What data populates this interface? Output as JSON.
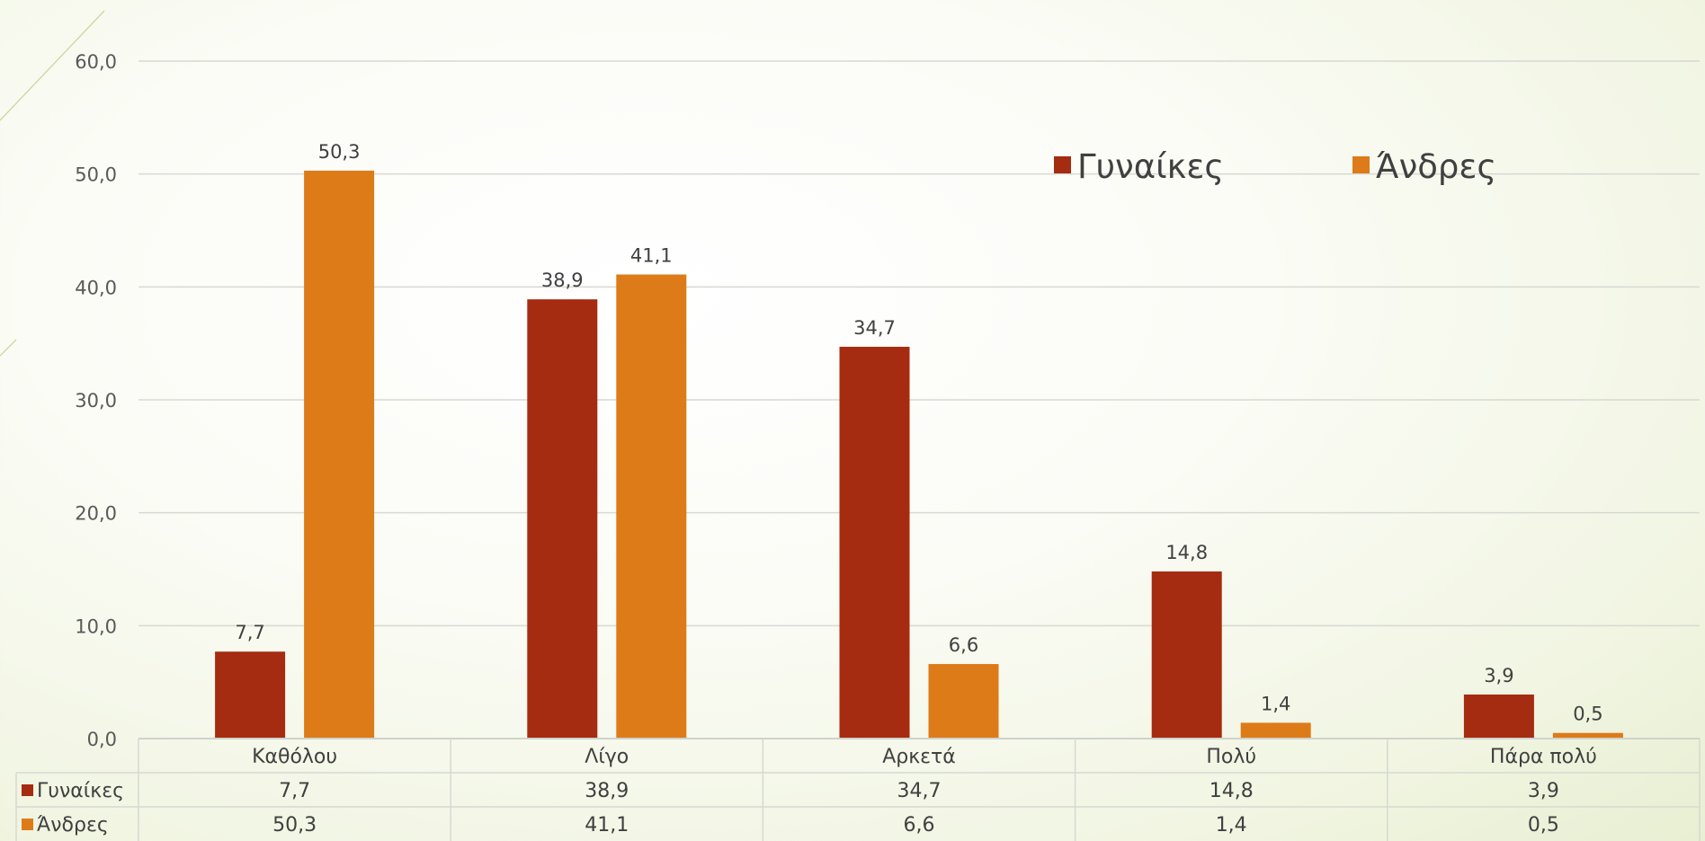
{
  "chart_data": {
    "type": "bar",
    "categories": [
      "Καθόλου",
      "Λίγο",
      "Αρκετά",
      "Πολύ",
      "Πάρα πολύ"
    ],
    "series": [
      {
        "name": "Γυναίκες",
        "values": [
          7.7,
          38.9,
          34.7,
          14.8,
          3.9
        ],
        "labels": [
          "7,7",
          "38,9",
          "34,7",
          "14,8",
          "3,9"
        ],
        "color": "#a52c10"
      },
      {
        "name": "Άνδρες",
        "values": [
          50.3,
          41.1,
          6.6,
          1.4,
          0.5
        ],
        "labels": [
          "50,3",
          "41,1",
          "6,6",
          "1,4",
          "0,5"
        ],
        "color": "#dd7b19"
      }
    ],
    "ylim": [
      0,
      60
    ],
    "yticks": [
      "0,0",
      "10,0",
      "20,0",
      "30,0",
      "40,0",
      "50,0",
      "60,0"
    ],
    "title": "",
    "xlabel": "",
    "ylabel": "",
    "grid": true,
    "legend_position": "top-right",
    "data_table": true
  }
}
